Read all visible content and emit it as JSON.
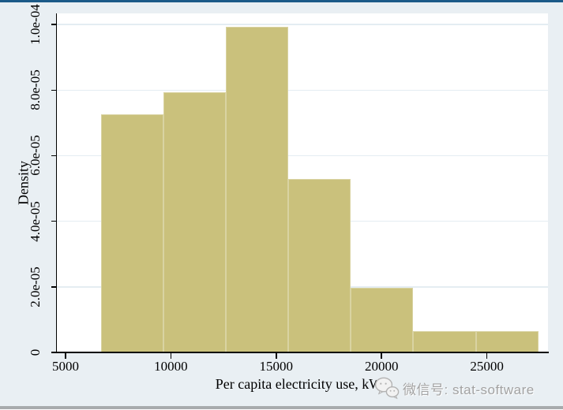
{
  "window": {
    "top_border_color": "#1b5a88",
    "bottom_border_color": "#a8abad",
    "background_color": "#e9eff3"
  },
  "watermark": {
    "icon": "wechat-icon",
    "text": "微信号: stat-software",
    "color": "#a2a2a2"
  },
  "chart_data": {
    "type": "bar",
    "subtype": "histogram",
    "title": "",
    "xlabel": "Per capita electricity use, kWh",
    "ylabel": "Density",
    "xlim": [
      4590,
      27900
    ],
    "ylim": [
      0,
      0.0001034
    ],
    "x_ticks": [
      5000,
      10000,
      15000,
      20000,
      25000
    ],
    "x_tick_labels": [
      "5000",
      "10000",
      "15000",
      "20000",
      "25000"
    ],
    "y_ticks": [
      0,
      2e-05,
      4e-05,
      6e-05,
      8e-05,
      0.0001
    ],
    "y_tick_labels": [
      "0",
      "2.0e-05",
      "4.0e-05",
      "6.0e-05",
      "8.0e-05",
      "1.0e-04"
    ],
    "grid": true,
    "plot_background": "#ffffff",
    "gridline_color": "#e4edf2",
    "bar_fill": "#cac17c",
    "bar_edge": "#d9d3a2",
    "bin_width": 2965,
    "bins": [
      {
        "start": 6685,
        "end": 9650,
        "density": 7.27e-05,
        "count": 11
      },
      {
        "start": 9650,
        "end": 12615,
        "density": 7.94e-05,
        "count": 12
      },
      {
        "start": 12615,
        "end": 15580,
        "density": 9.92e-05,
        "count": 15
      },
      {
        "start": 15580,
        "end": 18545,
        "density": 5.29e-05,
        "count": 8
      },
      {
        "start": 18545,
        "end": 21510,
        "density": 1.98e-05,
        "count": 3
      },
      {
        "start": 21510,
        "end": 24475,
        "density": 6.6e-06,
        "count": 1
      },
      {
        "start": 24475,
        "end": 27440,
        "density": 6.6e-06,
        "count": 1
      }
    ]
  }
}
